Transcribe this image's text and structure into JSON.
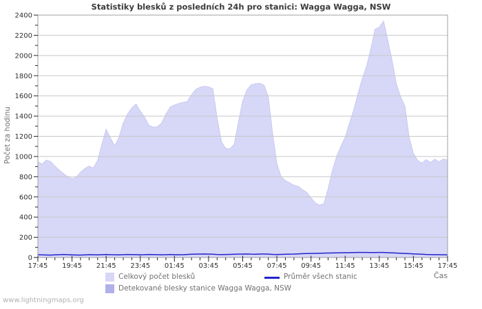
{
  "chart": {
    "title": "Statistiky blesků z posledních 24h pro stanici: Wagga Wagga, NSW",
    "ylabel": "Počet za hodinu",
    "xlabel": "Čas",
    "watermark": "www.lightningmaps.org"
  },
  "legend": [
    {
      "label": "Celkový počet blesků",
      "type": "area",
      "color": "#d7d7f7"
    },
    {
      "label": "Průměr všech stanic",
      "type": "line",
      "color": "#2222cc"
    },
    {
      "label": "Detekované blesky stanice Wagga Wagga, NSW",
      "type": "area",
      "color": "#b0b0eb"
    }
  ],
  "colors": {
    "grid": "#c8c8c8",
    "border": "#a0a0a0",
    "tick": "#222222",
    "tick_label": "#2f2f2f",
    "area_edge": "#c9c9f2",
    "background": "#ffffff"
  },
  "chart_data": {
    "type": "area",
    "title": "Statistiky blesků z posledních 24h pro stanici: Wagga Wagga, NSW",
    "xlabel": "Čas",
    "ylabel": "Počet za hodinu",
    "x_start": "17:45",
    "interval_minutes": 15,
    "points": 97,
    "x_ticks": [
      "17:45",
      "19:45",
      "21:45",
      "23:45",
      "01:45",
      "03:45",
      "05:45",
      "07:45",
      "09:45",
      "11:45",
      "13:45",
      "15:45",
      "17:45"
    ],
    "ylim": [
      0,
      2400
    ],
    "y_tick_step": 200,
    "y_minor_step": 100,
    "grid": true,
    "legend_position": "bottom",
    "series": [
      {
        "name": "Celkový počet blesků",
        "kind": "area",
        "color": "#d7d7f7",
        "values": [
          950,
          925,
          965,
          950,
          905,
          865,
          830,
          800,
          780,
          795,
          845,
          880,
          905,
          885,
          960,
          1120,
          1270,
          1185,
          1105,
          1190,
          1330,
          1420,
          1480,
          1520,
          1450,
          1390,
          1310,
          1290,
          1295,
          1330,
          1420,
          1490,
          1510,
          1525,
          1535,
          1545,
          1610,
          1665,
          1685,
          1695,
          1690,
          1670,
          1380,
          1150,
          1080,
          1075,
          1120,
          1340,
          1550,
          1660,
          1710,
          1720,
          1725,
          1705,
          1590,
          1230,
          930,
          800,
          760,
          740,
          715,
          705,
          670,
          645,
          590,
          540,
          520,
          530,
          680,
          860,
          1000,
          1100,
          1190,
          1330,
          1460,
          1620,
          1770,
          1890,
          2060,
          2260,
          2280,
          2340,
          2150,
          1950,
          1720,
          1590,
          1500,
          1190,
          1030,
          960,
          935,
          970,
          940,
          975,
          945,
          975,
          965
        ]
      },
      {
        "name": "Průměr všech stanic",
        "kind": "line",
        "color": "#2222cc",
        "values": [
          28,
          26,
          25,
          24,
          26,
          28,
          30,
          28,
          26,
          25,
          24,
          26,
          28,
          27,
          26,
          28,
          30,
          28,
          27,
          26,
          28,
          30,
          29,
          28,
          27,
          28,
          30,
          29,
          28,
          27,
          28,
          30,
          28,
          27,
          28,
          30,
          32,
          33,
          34,
          35,
          34,
          32,
          30,
          29,
          30,
          31,
          32,
          33,
          34,
          35,
          33,
          32,
          34,
          35,
          33,
          31,
          30,
          31,
          32,
          33,
          34,
          36,
          38,
          39,
          40,
          41,
          42,
          43,
          44,
          45,
          46,
          47,
          48,
          48,
          49,
          50,
          50,
          50,
          49,
          49,
          50,
          50,
          48,
          46,
          44,
          42,
          40,
          38,
          36,
          34,
          32,
          30,
          29,
          28,
          28,
          27,
          27
        ]
      },
      {
        "name": "Detekované blesky stanice Wagga Wagga, NSW",
        "kind": "area",
        "color": "#b0b0eb",
        "constant": 0,
        "values": []
      }
    ]
  }
}
